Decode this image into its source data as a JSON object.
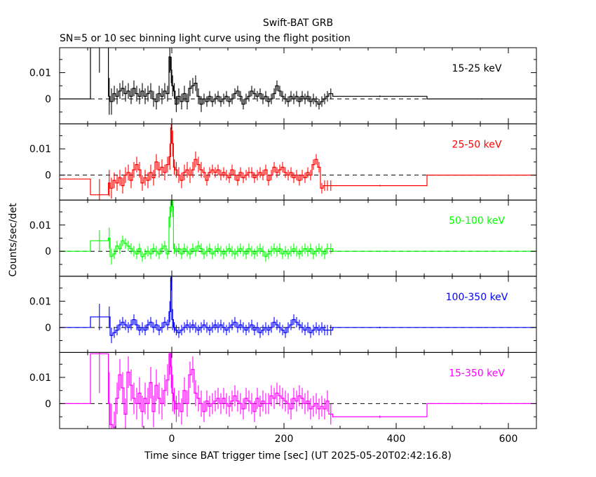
{
  "chart_data": {
    "type": "line",
    "title": "Swift-BAT GRB",
    "subtitle": "SN=5 or 10 sec binning light curve using the flight position",
    "xlabel": "Time since BAT trigger time [sec] (UT 2025-05-20T02:42:16.8)",
    "ylabel": "Counts/sec/det",
    "xlim": [
      -200,
      650
    ],
    "ylim": [
      -0.0095,
      0.0195
    ],
    "xticks": [
      0,
      200,
      400,
      600
    ],
    "xtick_labels": [
      "0",
      "200",
      "400",
      "600"
    ],
    "yticks": [
      0,
      0.01
    ],
    "ytick_labels": [
      "0",
      "0.01"
    ],
    "zero_line": "dashed",
    "bin_edges": [
      -200,
      -145,
      -113,
      -110,
      -105,
      -100,
      -95,
      -90,
      -85,
      -80,
      -75,
      -70,
      -65,
      -60,
      -55,
      -50,
      -45,
      -40,
      -35,
      -30,
      -25,
      -20,
      -15,
      -10,
      -5,
      -2,
      0,
      3,
      6,
      10,
      15,
      20,
      25,
      30,
      35,
      40,
      45,
      50,
      55,
      60,
      65,
      70,
      75,
      80,
      85,
      90,
      95,
      100,
      105,
      110,
      115,
      120,
      125,
      130,
      135,
      140,
      145,
      150,
      155,
      160,
      165,
      170,
      175,
      180,
      185,
      190,
      195,
      200,
      205,
      210,
      215,
      220,
      225,
      230,
      235,
      240,
      245,
      250,
      255,
      260,
      265,
      270,
      275,
      280,
      287,
      455,
      650
    ],
    "series": [
      {
        "name": "15-25 keV",
        "color": "#000000",
        "values": [
          0,
          0.022,
          0.001,
          -0.001,
          0.002,
          0.001,
          0.003,
          0.004,
          0.002,
          0.003,
          0.001,
          0.004,
          0.002,
          0.001,
          0.003,
          0.001,
          0.002,
          0.003,
          0.0,
          -0.001,
          0.002,
          0.001,
          0.003,
          0.002,
          0.016,
          0.011,
          0.005,
          0.003,
          -0.002,
          0.001,
          -0.001,
          0.002,
          -0.001,
          0.004,
          0.005,
          0.006,
          0.001,
          -0.002,
          0.0,
          -0.001,
          0.001,
          -0.001,
          0.0,
          0.001,
          -0.001,
          0.0,
          0.001,
          -0.001,
          0.0,
          0.002,
          0.003,
          0.001,
          -0.002,
          0.0,
          0.001,
          0.003,
          0.002,
          0.001,
          0.002,
          0.0,
          0.001,
          -0.001,
          0.0,
          0.002,
          0.005,
          0.003,
          0.001,
          0.0,
          -0.001,
          0.001,
          0.0,
          0.001,
          -0.001,
          0.001,
          0.0,
          0.001,
          -0.001,
          0.0,
          -0.001,
          -0.002,
          -0.001,
          0.0,
          0.001,
          0.002,
          0.001,
          0.0
        ],
        "errors": [
          0,
          0.012,
          0.007,
          0.005,
          0.003,
          0.003,
          0.003,
          0.003,
          0.003,
          0.003,
          0.003,
          0.003,
          0.003,
          0.003,
          0.003,
          0.003,
          0.003,
          0.003,
          0.003,
          0.003,
          0.003,
          0.003,
          0.003,
          0.003,
          0.006,
          0.005,
          0.004,
          0.003,
          0.003,
          0.003,
          0.003,
          0.003,
          0.003,
          0.003,
          0.003,
          0.003,
          0.003,
          0.003,
          0.002,
          0.002,
          0.002,
          0.002,
          0.002,
          0.002,
          0.002,
          0.002,
          0.002,
          0.002,
          0.002,
          0.002,
          0.002,
          0.002,
          0.002,
          0.002,
          0.002,
          0.002,
          0.002,
          0.002,
          0.002,
          0.002,
          0.002,
          0.002,
          0.002,
          0.002,
          0.002,
          0.002,
          0.002,
          0.002,
          0.002,
          0.002,
          0.002,
          0.002,
          0.002,
          0.002,
          0.002,
          0.002,
          0.002,
          0.002,
          0.002,
          0.002,
          0.002,
          0.002,
          0.002,
          0.002,
          0.0003,
          0.0002
        ]
      },
      {
        "name": "25-50 keV",
        "color": "#ff0000",
        "values": [
          -0.0015,
          -0.0075,
          -0.003,
          -0.005,
          -0.002,
          -0.003,
          -0.001,
          -0.004,
          0.0,
          0.001,
          -0.002,
          0.002,
          0.004,
          0.002,
          -0.003,
          -0.001,
          -0.002,
          0.001,
          -0.001,
          0.005,
          0.002,
          0.003,
          0.001,
          0.004,
          0.007,
          0.018,
          0.012,
          0.003,
          0.002,
          0.0,
          -0.002,
          0.001,
          0.002,
          0.0,
          0.002,
          0.006,
          0.004,
          0.002,
          0.001,
          -0.002,
          0.001,
          0.002,
          0.001,
          0.002,
          0.0,
          0.001,
          0.0,
          -0.001,
          0.002,
          0.0,
          -0.002,
          0.001,
          -0.001,
          0.0,
          0.001,
          0.001,
          -0.001,
          0.0,
          0.001,
          0.0,
          0.002,
          -0.002,
          0.0,
          0.003,
          0.001,
          0.002,
          0.003,
          0.001,
          0.0,
          0.001,
          -0.001,
          0.0,
          -0.002,
          0.0,
          -0.001,
          0.001,
          0.0,
          0.004,
          0.006,
          0.003,
          -0.005,
          -0.004,
          -0.004,
          -0.004,
          -0.004,
          0.0
        ],
        "errors": [
          0,
          0.006,
          0.005,
          0.004,
          0.003,
          0.003,
          0.003,
          0.003,
          0.003,
          0.003,
          0.003,
          0.003,
          0.003,
          0.003,
          0.003,
          0.003,
          0.003,
          0.003,
          0.003,
          0.003,
          0.003,
          0.003,
          0.003,
          0.003,
          0.005,
          0.006,
          0.005,
          0.003,
          0.003,
          0.003,
          0.003,
          0.003,
          0.003,
          0.003,
          0.003,
          0.003,
          0.003,
          0.003,
          0.002,
          0.002,
          0.002,
          0.002,
          0.002,
          0.002,
          0.002,
          0.002,
          0.002,
          0.002,
          0.002,
          0.002,
          0.002,
          0.002,
          0.002,
          0.002,
          0.002,
          0.002,
          0.002,
          0.002,
          0.002,
          0.002,
          0.002,
          0.002,
          0.002,
          0.002,
          0.002,
          0.002,
          0.002,
          0.002,
          0.002,
          0.002,
          0.002,
          0.002,
          0.002,
          0.002,
          0.002,
          0.002,
          0.002,
          0.002,
          0.002,
          0.002,
          0.002,
          0.002,
          0.002,
          0.002,
          0.0003,
          0.0002
        ]
      },
      {
        "name": "50-100 keV",
        "color": "#00ff00",
        "values": [
          0,
          0.004,
          0.005,
          -0.002,
          -0.001,
          0.002,
          0.001,
          0.004,
          0.003,
          0.002,
          0.001,
          0.0,
          -0.001,
          0.001,
          -0.002,
          -0.001,
          0.0,
          -0.001,
          0.001,
          0.0,
          -0.001,
          0.001,
          0.002,
          -0.001,
          0.013,
          0.019,
          0.017,
          0.001,
          0.0,
          0.001,
          -0.001,
          0.001,
          0.0,
          -0.001,
          0.001,
          0.0,
          0.002,
          0.001,
          -0.001,
          0.0,
          0.001,
          -0.001,
          0.0,
          0.001,
          0.0,
          -0.001,
          0.0,
          0.001,
          0.0,
          -0.001,
          0.0,
          0.001,
          0.0,
          -0.001,
          0.001,
          0.0,
          -0.001,
          0.0,
          0.001,
          0.0,
          -0.002,
          -0.001,
          0.0,
          0.001,
          0.0,
          0.001,
          -0.001,
          0.0,
          -0.001,
          0.0,
          0.001,
          0.0,
          -0.001,
          0.0,
          0.001,
          0.0,
          0.001,
          -0.001,
          0.0,
          0.001,
          0.0,
          -0.001,
          0.001,
          0.001,
          0.0,
          0.0
        ],
        "errors": [
          0,
          0.004,
          0.004,
          0.003,
          0.002,
          0.002,
          0.002,
          0.002,
          0.002,
          0.002,
          0.002,
          0.002,
          0.002,
          0.002,
          0.002,
          0.002,
          0.002,
          0.002,
          0.002,
          0.002,
          0.002,
          0.002,
          0.002,
          0.002,
          0.004,
          0.004,
          0.004,
          0.002,
          0.002,
          0.002,
          0.002,
          0.002,
          0.002,
          0.002,
          0.002,
          0.002,
          0.002,
          0.002,
          0.002,
          0.002,
          0.002,
          0.002,
          0.002,
          0.002,
          0.002,
          0.002,
          0.002,
          0.002,
          0.002,
          0.002,
          0.002,
          0.002,
          0.002,
          0.002,
          0.002,
          0.002,
          0.002,
          0.002,
          0.002,
          0.002,
          0.002,
          0.002,
          0.002,
          0.002,
          0.002,
          0.002,
          0.002,
          0.002,
          0.002,
          0.002,
          0.002,
          0.002,
          0.002,
          0.002,
          0.002,
          0.002,
          0.002,
          0.002,
          0.002,
          0.002,
          0.002,
          0.002,
          0.002,
          0.002,
          0.0003,
          0.0002
        ]
      },
      {
        "name": "100-350 keV",
        "color": "#0000ff",
        "values": [
          0,
          0.004,
          0.004,
          -0.003,
          -0.002,
          -0.001,
          0.001,
          0.002,
          0.001,
          0.0,
          0.001,
          0.003,
          0.001,
          -0.001,
          0.0,
          -0.001,
          0.001,
          0.002,
          0.0,
          0.001,
          -0.001,
          0.0,
          0.002,
          0.001,
          0.006,
          0.019,
          0.003,
          0.0,
          -0.001,
          -0.002,
          -0.001,
          0.0,
          0.001,
          0.0,
          0.001,
          0.0,
          -0.001,
          0.0,
          0.001,
          0.0,
          -0.001,
          0.0,
          0.001,
          0.0,
          0.001,
          0.0,
          -0.001,
          0.0,
          0.001,
          0.002,
          0.0,
          0.001,
          0.0,
          -0.001,
          0.0,
          0.001,
          -0.001,
          0.0,
          -0.002,
          -0.001,
          0.0,
          -0.001,
          0.0,
          0.002,
          0.001,
          0.0,
          -0.001,
          -0.002,
          0.0,
          0.001,
          0.003,
          0.002,
          0.001,
          0.0,
          -0.001,
          0.0,
          -0.002,
          -0.001,
          0.0,
          -0.001,
          0.0,
          -0.001,
          -0.001,
          -0.001,
          0.0,
          0.0
        ],
        "errors": [
          0,
          0.005,
          0.004,
          0.003,
          0.002,
          0.002,
          0.002,
          0.002,
          0.002,
          0.002,
          0.002,
          0.002,
          0.002,
          0.002,
          0.002,
          0.002,
          0.002,
          0.002,
          0.002,
          0.002,
          0.002,
          0.002,
          0.002,
          0.002,
          0.004,
          0.005,
          0.004,
          0.002,
          0.002,
          0.002,
          0.002,
          0.002,
          0.002,
          0.002,
          0.002,
          0.002,
          0.002,
          0.002,
          0.002,
          0.002,
          0.002,
          0.002,
          0.002,
          0.002,
          0.002,
          0.002,
          0.002,
          0.002,
          0.002,
          0.002,
          0.002,
          0.002,
          0.002,
          0.002,
          0.002,
          0.002,
          0.002,
          0.002,
          0.002,
          0.002,
          0.002,
          0.002,
          0.002,
          0.002,
          0.002,
          0.002,
          0.002,
          0.002,
          0.002,
          0.002,
          0.002,
          0.002,
          0.002,
          0.002,
          0.002,
          0.002,
          0.002,
          0.002,
          0.002,
          0.002,
          0.002,
          0.002,
          0.002,
          0.002,
          0.0003,
          0.0002
        ]
      },
      {
        "name": "15-350 keV",
        "color": "#ff00ff",
        "values": [
          0,
          0.019,
          0.0,
          -0.008,
          -0.009,
          0.002,
          0.011,
          0.006,
          -0.004,
          0.012,
          0.007,
          0.002,
          0.0,
          0.004,
          -0.003,
          0.002,
          0.0,
          0.008,
          -0.003,
          0.007,
          0.002,
          0.0,
          0.005,
          0.009,
          0.019,
          0.014,
          0.004,
          0.001,
          -0.002,
          0.0,
          -0.003,
          0.005,
          0.0,
          0.011,
          0.013,
          0.004,
          0.002,
          0.0,
          -0.003,
          0.001,
          -0.001,
          0.0,
          0.001,
          0.002,
          0.0,
          0.002,
          0.0,
          -0.001,
          0.001,
          0.003,
          0.001,
          0.0,
          -0.002,
          0.002,
          0.001,
          0.0,
          -0.003,
          0.002,
          -0.001,
          0.001,
          0.0,
          0.0,
          0.003,
          0.002,
          0.004,
          0.003,
          0.002,
          0.001,
          0.0,
          -0.002,
          0.002,
          0.001,
          0.003,
          0.002,
          0.0,
          0.001,
          -0.002,
          -0.001,
          0.0,
          -0.002,
          -0.001,
          -0.002,
          0.001,
          -0.004,
          -0.005,
          0.0
        ],
        "errors": [
          0,
          0.015,
          0.012,
          0.008,
          0.006,
          0.006,
          0.006,
          0.006,
          0.006,
          0.006,
          0.006,
          0.006,
          0.006,
          0.006,
          0.006,
          0.006,
          0.006,
          0.006,
          0.006,
          0.006,
          0.006,
          0.006,
          0.006,
          0.006,
          0.008,
          0.008,
          0.007,
          0.005,
          0.005,
          0.005,
          0.005,
          0.005,
          0.005,
          0.005,
          0.005,
          0.005,
          0.005,
          0.005,
          0.004,
          0.004,
          0.004,
          0.004,
          0.004,
          0.004,
          0.004,
          0.004,
          0.004,
          0.004,
          0.004,
          0.004,
          0.004,
          0.004,
          0.004,
          0.004,
          0.004,
          0.004,
          0.004,
          0.004,
          0.004,
          0.004,
          0.004,
          0.004,
          0.004,
          0.004,
          0.004,
          0.004,
          0.004,
          0.004,
          0.004,
          0.004,
          0.004,
          0.004,
          0.004,
          0.004,
          0.004,
          0.004,
          0.004,
          0.004,
          0.004,
          0.004,
          0.004,
          0.004,
          0.004,
          0.004,
          0.0005,
          0.0003
        ]
      }
    ]
  }
}
